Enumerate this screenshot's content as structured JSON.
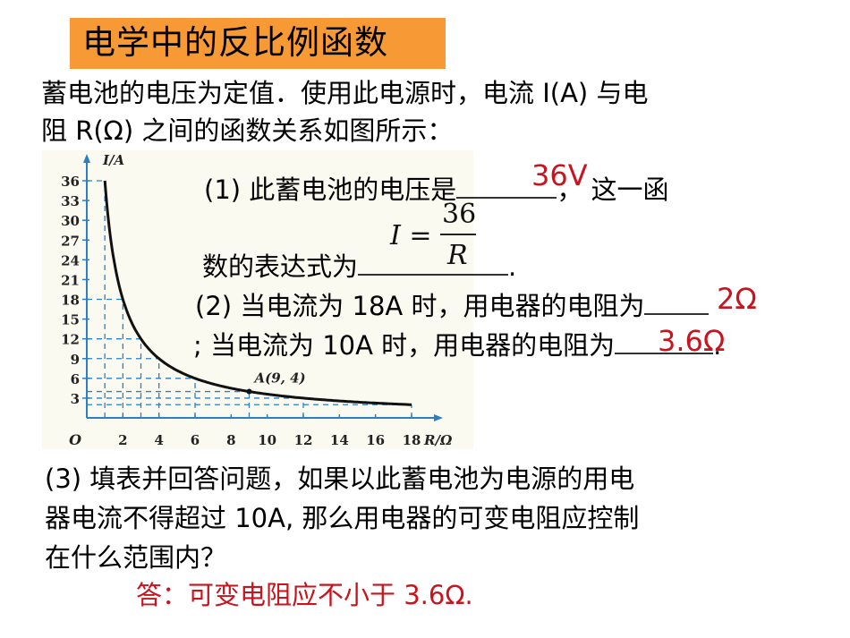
{
  "header": {
    "title": "电学中的反比例函数",
    "title_bg": "#f79a35"
  },
  "intro": {
    "line1": "蓄电池的电压为定值．使用此电源时，电流 I(A) 与电",
    "line2": "阻 R(Ω) 之间的函数关系如图所示："
  },
  "q1": {
    "prefix": "(1) 此蓄电池的电压是",
    "suffix": "，  这一函",
    "answer": "36V",
    "line2_prefix": "数的表达式为",
    "line2_suffix": ".",
    "formula": {
      "lhs": "I =",
      "numerator": "36",
      "denominator": "R"
    }
  },
  "q2": {
    "line1": "(2) 当电流为 18A 时，用电器的电阻为",
    "answer1": "2Ω",
    "line2": "; 当电流为 10A 时，用电器的电阻为",
    "line2_suffix": ".",
    "answer2": "3.6Ω"
  },
  "q3": {
    "line1": "(3) 填表并回答问题，如果以此蓄电池为电源的用电",
    "line2": "器电流不得超过 10A, 那么用电器的可变电阻应控制",
    "line3": "在什么范围内？",
    "answer": "答：可变电阻应不小于 3.6Ω."
  },
  "colors": {
    "answer_red": "#c8141e",
    "axis_blue": "#2a7fc6",
    "curve": "#111111"
  },
  "chart_data": {
    "type": "line",
    "title": "",
    "xlabel": "R/Ω",
    "ylabel": "I/A",
    "origin_label": "O",
    "x_ticks": [
      2,
      4,
      6,
      8,
      10,
      12,
      14,
      16,
      18
    ],
    "y_ticks": [
      3,
      6,
      9,
      12,
      15,
      18,
      21,
      24,
      27,
      30,
      33,
      36
    ],
    "xlim": [
      0,
      19
    ],
    "ylim": [
      0,
      37
    ],
    "function": "I = 36 / R",
    "x": [
      1,
      1.5,
      2,
      3,
      4,
      6,
      9,
      12,
      18
    ],
    "series": [
      {
        "name": "I=36/R",
        "values": [
          36,
          24,
          18,
          12,
          9,
          6,
          4,
          3,
          2
        ]
      }
    ],
    "annotations": [
      {
        "label": "A(9, 4)",
        "x": 9,
        "y": 4
      }
    ],
    "grid": "dashed guide lines at sample points"
  }
}
